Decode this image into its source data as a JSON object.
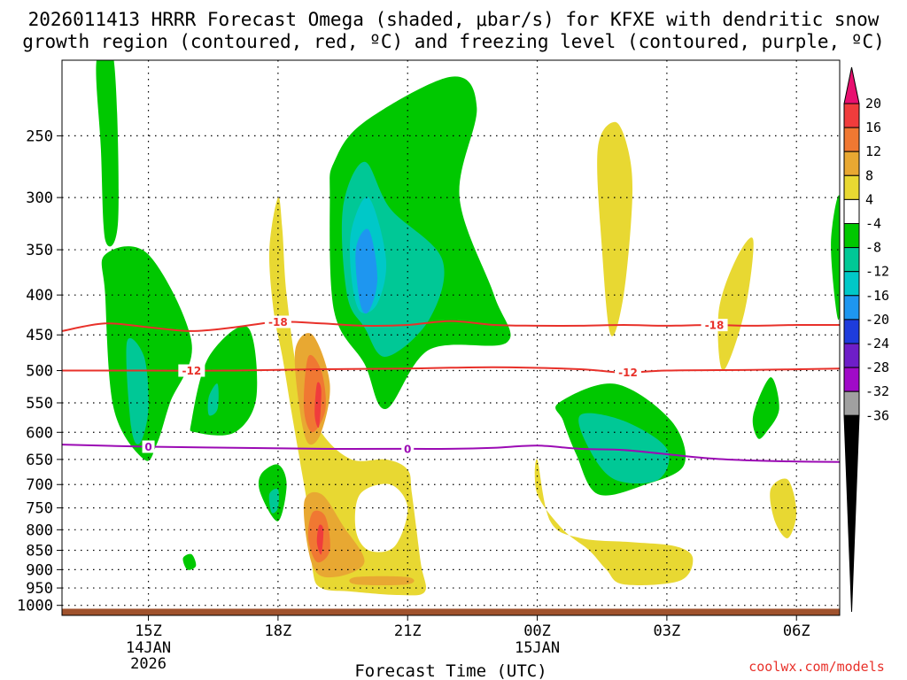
{
  "title": {
    "line1": "2026011413 HRRR Forecast Omega (shaded, μbar/s) for KFXE with dendritic snow",
    "line2": "growth region (contoured, red, ºC) and freezing level (contoured, purple, ºC)"
  },
  "credit": "coolwx.com/models",
  "chart_data": {
    "type": "heatmap",
    "title": "2026011413 HRRR Forecast Omega (shaded, μbar/s) for KFXE with dendritic snow growth region (contoured, red, ºC) and freezing level (contoured, purple, ºC)",
    "xlabel": "Forecast Time (UTC)",
    "ylabel": "",
    "xlim_hours_since_13Z": [
      0,
      18
    ],
    "x_ticks": [
      {
        "hour": 2,
        "label": "15Z",
        "date": "14JAN",
        "year": "2026"
      },
      {
        "hour": 5,
        "label": "18Z",
        "date": "",
        "year": ""
      },
      {
        "hour": 8,
        "label": "21Z",
        "date": "",
        "year": ""
      },
      {
        "hour": 11,
        "label": "00Z",
        "date": "15JAN",
        "year": ""
      },
      {
        "hour": 14,
        "label": "03Z",
        "date": "",
        "year": ""
      },
      {
        "hour": 17,
        "label": "06Z",
        "date": "",
        "year": ""
      }
    ],
    "y_ticks": [
      "250",
      "300",
      "350",
      "400",
      "450",
      "500",
      "550",
      "600",
      "650",
      "700",
      "750",
      "800",
      "850",
      "900",
      "950",
      "1000"
    ],
    "y_tick_values_hPa": [
      250,
      300,
      350,
      400,
      450,
      500,
      550,
      600,
      650,
      700,
      750,
      800,
      850,
      900,
      950,
      1000
    ],
    "ylim_hPa": [
      200,
      1030
    ],
    "y_scale": "log-pressure",
    "colorbar": {
      "labels": [
        "20",
        "16",
        "12",
        "8",
        "4",
        "-4",
        "-8",
        "-12",
        "-16",
        "-20",
        "-24",
        "-28",
        "-32",
        "-36"
      ],
      "colors": [
        "#e8106f",
        "#f03c3c",
        "#f07832",
        "#e8a832",
        "#e8d832",
        "#ffffff",
        "#00c800",
        "#00c896",
        "#00c8c8",
        "#1e96f0",
        "#1e3cdc",
        "#6e1ec8",
        "#a00ac8",
        "#a0a0a0",
        "#000000"
      ]
    },
    "omega_regions": [
      {
        "level": 4,
        "color": "#e8d832",
        "polygons": [
          [
            [
              5.0,
              300
            ],
            [
              4.8,
              350
            ],
            [
              4.9,
              420
            ],
            [
              5.1,
              480
            ],
            [
              5.3,
              560
            ],
            [
              5.5,
              650
            ],
            [
              5.7,
              760
            ],
            [
              5.8,
              900
            ],
            [
              6.0,
              950
            ],
            [
              6.7,
              960
            ],
            [
              7.8,
              970
            ],
            [
              8.4,
              960
            ],
            [
              8.3,
              880
            ],
            [
              8.1,
              720
            ],
            [
              8.0,
              670
            ],
            [
              7.5,
              650
            ],
            [
              6.7,
              650
            ],
            [
              6.0,
              600
            ],
            [
              5.5,
              520
            ],
            [
              5.2,
              400
            ],
            [
              5.1,
              330
            ]
          ],
          [
            [
              12.4,
              260
            ],
            [
              12.5,
              350
            ],
            [
              12.7,
              450
            ],
            [
              13.0,
              400
            ],
            [
              13.2,
              300
            ],
            [
              13.1,
              260
            ],
            [
              12.8,
              240
            ]
          ],
          [
            [
              15.2,
              420
            ],
            [
              15.6,
              360
            ],
            [
              16.0,
              340
            ],
            [
              15.8,
              420
            ],
            [
              15.3,
              500
            ]
          ],
          [
            [
              11.0,
              650
            ],
            [
              11.3,
              780
            ],
            [
              12.0,
              820
            ],
            [
              13.2,
              830
            ],
            [
              14.2,
              840
            ],
            [
              14.6,
              870
            ],
            [
              14.3,
              930
            ],
            [
              13.0,
              940
            ],
            [
              12.6,
              900
            ],
            [
              12.2,
              850
            ],
            [
              11.6,
              800
            ],
            [
              11.0,
              720
            ]
          ],
          [
            [
              16.4,
              710
            ],
            [
              16.8,
              690
            ],
            [
              17.0,
              760
            ],
            [
              16.8,
              820
            ],
            [
              16.5,
              780
            ]
          ]
        ]
      },
      {
        "level": 8,
        "color": "#e8a832",
        "polygons": [
          [
            [
              5.4,
              470
            ],
            [
              5.8,
              450
            ],
            [
              6.2,
              520
            ],
            [
              6.0,
              600
            ],
            [
              5.7,
              620
            ],
            [
              5.5,
              560
            ]
          ],
          [
            [
              5.6,
              740
            ],
            [
              6.0,
              720
            ],
            [
              6.5,
              790
            ],
            [
              7.0,
              880
            ],
            [
              6.3,
              920
            ],
            [
              5.8,
              890
            ]
          ],
          [
            [
              6.8,
              920
            ],
            [
              8.0,
              920
            ],
            [
              8.0,
              940
            ],
            [
              6.8,
              940
            ]
          ]
        ]
      },
      {
        "level": 12,
        "color": "#f07832",
        "polygons": [
          [
            [
              5.7,
              480
            ],
            [
              6.0,
              500
            ],
            [
              6.1,
              560
            ],
            [
              5.8,
              600
            ],
            [
              5.6,
              560
            ]
          ],
          [
            [
              5.8,
              760
            ],
            [
              6.1,
              770
            ],
            [
              6.2,
              850
            ],
            [
              5.9,
              880
            ],
            [
              5.7,
              820
            ]
          ]
        ]
      },
      {
        "level": 16,
        "color": "#f03c3c",
        "polygons": [
          [
            [
              5.9,
              520
            ],
            [
              6.0,
              530
            ],
            [
              5.95,
              590
            ],
            [
              5.85,
              570
            ]
          ],
          [
            [
              5.95,
              790
            ],
            [
              6.05,
              800
            ],
            [
              6.0,
              860
            ],
            [
              5.9,
              830
            ]
          ]
        ]
      },
      {
        "level": -4,
        "color": "#00c800",
        "polygons": [
          [
            [
              0.8,
              200
            ],
            [
              1.2,
              200
            ],
            [
              1.3,
              320
            ],
            [
              1.0,
              340
            ],
            [
              0.9,
              260
            ]
          ],
          [
            [
              1.0,
              355
            ],
            [
              2.0,
              355
            ],
            [
              3.0,
              460
            ],
            [
              2.5,
              550
            ],
            [
              2.2,
              620
            ],
            [
              1.9,
              650
            ],
            [
              1.2,
              560
            ],
            [
              1.0,
              400
            ]
          ],
          [
            [
              3.0,
              580
            ],
            [
              3.4,
              480
            ],
            [
              4.3,
              440
            ],
            [
              4.5,
              540
            ],
            [
              4.0,
              600
            ],
            [
              3.1,
              600
            ]
          ],
          [
            [
              4.6,
              680
            ],
            [
              5.0,
              660
            ],
            [
              5.2,
              700
            ],
            [
              5.0,
              780
            ],
            [
              4.6,
              720
            ]
          ],
          [
            [
              6.3,
              270
            ],
            [
              7.0,
              240
            ],
            [
              9.0,
              210
            ],
            [
              9.6,
              230
            ],
            [
              9.2,
              300
            ],
            [
              10.0,
              400
            ],
            [
              10.3,
              460
            ],
            [
              8.5,
              470
            ],
            [
              7.5,
              560
            ],
            [
              7.0,
              490
            ],
            [
              6.3,
              420
            ],
            [
              6.2,
              300
            ]
          ],
          [
            [
              11.5,
              550
            ],
            [
              12.8,
              520
            ],
            [
              14.1,
              580
            ],
            [
              14.4,
              660
            ],
            [
              13.5,
              700
            ],
            [
              12.4,
              720
            ],
            [
              11.9,
              640
            ],
            [
              11.6,
              580
            ]
          ],
          [
            [
              16.0,
              570
            ],
            [
              16.4,
              510
            ],
            [
              16.6,
              560
            ],
            [
              16.3,
              600
            ],
            [
              16.1,
              610
            ]
          ],
          [
            [
              17.8,
              340
            ],
            [
              18.0,
              300
            ],
            [
              18.0,
              420
            ],
            [
              17.9,
              410
            ]
          ],
          [
            [
              2.8,
              870
            ],
            [
              3.0,
              860
            ],
            [
              3.1,
              890
            ],
            [
              2.9,
              900
            ]
          ]
        ]
      },
      {
        "level": -8,
        "color": "#00c896",
        "polygons": [
          [
            [
              1.5,
              460
            ],
            [
              1.9,
              480
            ],
            [
              2.0,
              560
            ],
            [
              1.8,
              620
            ],
            [
              1.6,
              590
            ]
          ],
          [
            [
              4.8,
              720
            ],
            [
              5.0,
              710
            ],
            [
              5.0,
              750
            ],
            [
              4.85,
              760
            ]
          ],
          [
            [
              6.5,
              310
            ],
            [
              7.0,
              270
            ],
            [
              7.6,
              310
            ],
            [
              8.8,
              360
            ],
            [
              8.5,
              430
            ],
            [
              7.5,
              480
            ],
            [
              7.0,
              440
            ],
            [
              6.6,
              400
            ]
          ],
          [
            [
              12.0,
              570
            ],
            [
              13.0,
              580
            ],
            [
              14.0,
              630
            ],
            [
              13.8,
              690
            ],
            [
              12.8,
              690
            ],
            [
              12.2,
              630
            ]
          ],
          [
            [
              3.4,
              540
            ],
            [
              3.6,
              520
            ],
            [
              3.6,
              560
            ],
            [
              3.4,
              570
            ]
          ]
        ]
      },
      {
        "level": -12,
        "color": "#00c8c8",
        "polygons": [
          [
            [
              6.7,
              330
            ],
            [
              7.1,
              300
            ],
            [
              7.5,
              360
            ],
            [
              7.3,
              410
            ],
            [
              6.9,
              420
            ],
            [
              6.7,
              380
            ]
          ]
        ]
      },
      {
        "level": -16,
        "color": "#1e96f0",
        "polygons": [
          [
            [
              6.8,
              350
            ],
            [
              7.1,
              330
            ],
            [
              7.3,
              380
            ],
            [
              7.1,
              420
            ],
            [
              6.9,
              410
            ]
          ]
        ]
      }
    ],
    "white_pocket": [
      [
        6.9,
        720
      ],
      [
        7.6,
        700
      ],
      [
        8.0,
        750
      ],
      [
        7.7,
        840
      ],
      [
        7.1,
        850
      ],
      [
        6.8,
        800
      ]
    ],
    "contours": [
      {
        "label": "-18",
        "color": "#e8312a",
        "label_hours": [
          5.0,
          15.1
        ],
        "points": [
          [
            0,
            445
          ],
          [
            1,
            435
          ],
          [
            2,
            440
          ],
          [
            3,
            445
          ],
          [
            4,
            440
          ],
          [
            5,
            433
          ],
          [
            6,
            435
          ],
          [
            7,
            438
          ],
          [
            8,
            437
          ],
          [
            9,
            432
          ],
          [
            10,
            437
          ],
          [
            11,
            438
          ],
          [
            12,
            438
          ],
          [
            13,
            437
          ],
          [
            14,
            438
          ],
          [
            15,
            437
          ],
          [
            16,
            438
          ],
          [
            17,
            437
          ],
          [
            18,
            437
          ]
        ]
      },
      {
        "label": "-12",
        "color": "#e8312a",
        "label_hours": [
          3.0,
          13.1
        ],
        "points": [
          [
            0,
            500
          ],
          [
            2,
            500
          ],
          [
            4,
            500
          ],
          [
            6,
            498
          ],
          [
            8,
            497
          ],
          [
            10,
            495
          ],
          [
            12,
            498
          ],
          [
            13,
            503
          ],
          [
            14,
            500
          ],
          [
            16,
            499
          ],
          [
            18,
            497
          ]
        ]
      },
      {
        "label": "0",
        "color": "#9b0ab4",
        "label_hours": [
          2.0,
          8.0
        ],
        "points": [
          [
            0,
            622
          ],
          [
            2,
            626
          ],
          [
            4,
            628
          ],
          [
            6,
            630
          ],
          [
            8,
            630
          ],
          [
            9,
            630
          ],
          [
            10,
            628
          ],
          [
            11,
            624
          ],
          [
            12,
            630
          ],
          [
            13,
            632
          ],
          [
            14,
            640
          ],
          [
            15,
            648
          ],
          [
            16,
            652
          ],
          [
            17,
            654
          ],
          [
            18,
            655
          ]
        ]
      }
    ],
    "surface_band_hPa": [
      1010,
      1030
    ]
  }
}
